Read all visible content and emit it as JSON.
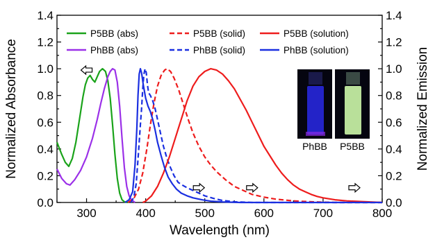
{
  "chart_data": {
    "type": "line",
    "xlabel": "Wavelength (nm)",
    "ylabel_left": "Normalized Absorbance",
    "ylabel_right": "Normalized Emission",
    "xlim": [
      250,
      800
    ],
    "ylim": [
      0,
      1.4
    ],
    "x_ticks": [
      "300",
      "400",
      "500",
      "600",
      "700",
      "800"
    ],
    "y_ticks": [
      "0.0",
      "0.2",
      "0.4",
      "0.6",
      "0.8",
      "1.0",
      "1.2",
      "1.4"
    ],
    "grid": false,
    "legend_position": "top",
    "series": [
      {
        "name": "P5BB (abs)",
        "color": "#1aa31a",
        "dash": "solid",
        "axis": "left",
        "points": [
          [
            250,
            0.45
          ],
          [
            258,
            0.36
          ],
          [
            264,
            0.3
          ],
          [
            270,
            0.27
          ],
          [
            276,
            0.33
          ],
          [
            282,
            0.45
          ],
          [
            288,
            0.62
          ],
          [
            294,
            0.79
          ],
          [
            298,
            0.88
          ],
          [
            302,
            0.93
          ],
          [
            306,
            0.95
          ],
          [
            310,
            0.92
          ],
          [
            314,
            0.9
          ],
          [
            318,
            0.94
          ],
          [
            322,
            0.98
          ],
          [
            327,
            1.0
          ],
          [
            332,
            0.98
          ],
          [
            336,
            0.91
          ],
          [
            340,
            0.78
          ],
          [
            344,
            0.58
          ],
          [
            348,
            0.36
          ],
          [
            352,
            0.18
          ],
          [
            356,
            0.07
          ],
          [
            360,
            0.02
          ],
          [
            364,
            0.005
          ],
          [
            370,
            0.0
          ]
        ]
      },
      {
        "name": "PhBB (abs)",
        "color": "#9b30e8",
        "dash": "solid",
        "axis": "left",
        "points": [
          [
            250,
            0.25
          ],
          [
            258,
            0.18
          ],
          [
            266,
            0.14
          ],
          [
            272,
            0.13
          ],
          [
            280,
            0.17
          ],
          [
            290,
            0.24
          ],
          [
            300,
            0.34
          ],
          [
            310,
            0.48
          ],
          [
            318,
            0.62
          ],
          [
            324,
            0.74
          ],
          [
            330,
            0.85
          ],
          [
            336,
            0.94
          ],
          [
            340,
            0.98
          ],
          [
            344,
            1.0
          ],
          [
            348,
            0.99
          ],
          [
            352,
            0.9
          ],
          [
            356,
            0.72
          ],
          [
            360,
            0.48
          ],
          [
            364,
            0.26
          ],
          [
            368,
            0.12
          ],
          [
            372,
            0.05
          ],
          [
            376,
            0.02
          ],
          [
            382,
            0.0
          ]
        ]
      },
      {
        "name": "P5BB (solid)",
        "color": "#ee1c1c",
        "dash": "dash",
        "axis": "right",
        "points": [
          [
            370,
            0.0
          ],
          [
            380,
            0.03
          ],
          [
            388,
            0.1
          ],
          [
            395,
            0.22
          ],
          [
            402,
            0.4
          ],
          [
            408,
            0.58
          ],
          [
            414,
            0.74
          ],
          [
            420,
            0.87
          ],
          [
            426,
            0.95
          ],
          [
            432,
            0.99
          ],
          [
            436,
            1.0
          ],
          [
            442,
            0.98
          ],
          [
            448,
            0.93
          ],
          [
            456,
            0.84
          ],
          [
            464,
            0.73
          ],
          [
            472,
            0.62
          ],
          [
            480,
            0.52
          ],
          [
            490,
            0.42
          ],
          [
            500,
            0.34
          ],
          [
            510,
            0.28
          ],
          [
            520,
            0.23
          ],
          [
            535,
            0.17
          ],
          [
            550,
            0.12
          ],
          [
            565,
            0.09
          ],
          [
            580,
            0.06
          ],
          [
            600,
            0.04
          ],
          [
            620,
            0.025
          ],
          [
            650,
            0.012
          ],
          [
            680,
            0.005
          ],
          [
            720,
            0.0
          ],
          [
            800,
            0.0
          ]
        ]
      },
      {
        "name": "PhBB (solid)",
        "color": "#1a2fe0",
        "dash": "dash",
        "axis": "right",
        "points": [
          [
            375,
            0.0
          ],
          [
            380,
            0.04
          ],
          [
            384,
            0.14
          ],
          [
            388,
            0.38
          ],
          [
            391,
            0.58
          ],
          [
            393,
            0.7
          ],
          [
            395,
            0.85
          ],
          [
            397,
            0.96
          ],
          [
            399,
            1.0
          ],
          [
            401,
            0.97
          ],
          [
            403,
            0.88
          ],
          [
            405,
            0.82
          ],
          [
            408,
            0.8
          ],
          [
            412,
            0.76
          ],
          [
            416,
            0.7
          ],
          [
            420,
            0.62
          ],
          [
            425,
            0.52
          ],
          [
            430,
            0.42
          ],
          [
            436,
            0.33
          ],
          [
            442,
            0.26
          ],
          [
            448,
            0.2
          ],
          [
            455,
            0.15
          ],
          [
            462,
            0.13
          ],
          [
            470,
            0.11
          ],
          [
            480,
            0.09
          ],
          [
            490,
            0.07
          ],
          [
            500,
            0.05
          ],
          [
            515,
            0.03
          ],
          [
            530,
            0.015
          ],
          [
            550,
            0.005
          ],
          [
            580,
            0.0
          ],
          [
            800,
            0.0
          ]
        ]
      },
      {
        "name": "P5BB (solution)",
        "color": "#ee1c1c",
        "dash": "solid",
        "axis": "right",
        "points": [
          [
            395,
            0.0
          ],
          [
            400,
            0.01
          ],
          [
            410,
            0.05
          ],
          [
            420,
            0.12
          ],
          [
            430,
            0.22
          ],
          [
            440,
            0.34
          ],
          [
            450,
            0.48
          ],
          [
            460,
            0.62
          ],
          [
            470,
            0.76
          ],
          [
            480,
            0.87
          ],
          [
            490,
            0.94
          ],
          [
            500,
            0.98
          ],
          [
            510,
            1.0
          ],
          [
            520,
            0.99
          ],
          [
            530,
            0.96
          ],
          [
            540,
            0.91
          ],
          [
            550,
            0.85
          ],
          [
            560,
            0.77
          ],
          [
            570,
            0.69
          ],
          [
            580,
            0.6
          ],
          [
            590,
            0.51
          ],
          [
            600,
            0.42
          ],
          [
            610,
            0.35
          ],
          [
            620,
            0.28
          ],
          [
            630,
            0.22
          ],
          [
            640,
            0.17
          ],
          [
            650,
            0.13
          ],
          [
            660,
            0.1
          ],
          [
            670,
            0.08
          ],
          [
            680,
            0.06
          ],
          [
            690,
            0.045
          ],
          [
            700,
            0.035
          ],
          [
            720,
            0.02
          ],
          [
            740,
            0.012
          ],
          [
            760,
            0.008
          ],
          [
            780,
            0.004
          ],
          [
            800,
            0.0
          ]
        ]
      },
      {
        "name": "PhBB (solution)",
        "color": "#1a2fe0",
        "dash": "solid",
        "axis": "right",
        "points": [
          [
            365,
            0.0
          ],
          [
            372,
            0.02
          ],
          [
            378,
            0.08
          ],
          [
            382,
            0.28
          ],
          [
            385,
            0.55
          ],
          [
            387,
            0.8
          ],
          [
            389,
            0.96
          ],
          [
            391,
            1.0
          ],
          [
            393,
            0.97
          ],
          [
            396,
            0.88
          ],
          [
            400,
            0.78
          ],
          [
            404,
            0.72
          ],
          [
            408,
            0.68
          ],
          [
            412,
            0.62
          ],
          [
            416,
            0.54
          ],
          [
            420,
            0.45
          ],
          [
            426,
            0.35
          ],
          [
            432,
            0.26
          ],
          [
            438,
            0.19
          ],
          [
            445,
            0.14
          ],
          [
            452,
            0.1
          ],
          [
            460,
            0.07
          ],
          [
            470,
            0.05
          ],
          [
            480,
            0.035
          ],
          [
            495,
            0.02
          ],
          [
            510,
            0.01
          ],
          [
            530,
            0.004
          ],
          [
            560,
            0.0
          ],
          [
            800,
            0.0
          ]
        ]
      }
    ],
    "arrow_annotations": [
      {
        "direction": "left",
        "x": 300,
        "y": 0.99
      },
      {
        "direction": "right",
        "x": 490,
        "y": 0.11
      },
      {
        "direction": "right",
        "x": 580,
        "y": 0.11
      },
      {
        "direction": "right",
        "x": 753,
        "y": 0.11
      }
    ],
    "inset_photo": {
      "labels": [
        "PhBB",
        "P5BB"
      ],
      "colors": {
        "PhBB": "#2a2ad8",
        "P5BB": "#c8e8a0"
      }
    }
  }
}
